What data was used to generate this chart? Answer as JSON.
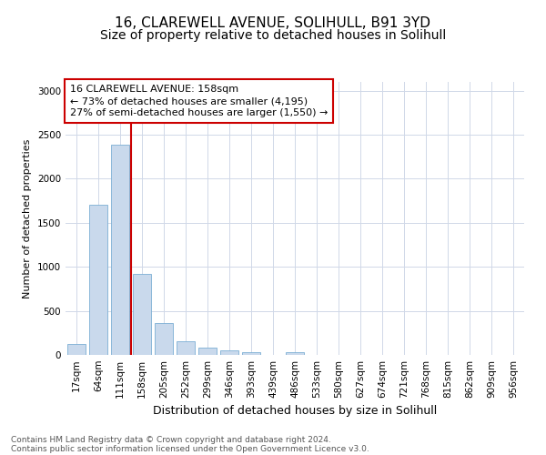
{
  "title1": "16, CLAREWELL AVENUE, SOLIHULL, B91 3YD",
  "title2": "Size of property relative to detached houses in Solihull",
  "xlabel": "Distribution of detached houses by size in Solihull",
  "ylabel": "Number of detached properties",
  "categories": [
    "17sqm",
    "64sqm",
    "111sqm",
    "158sqm",
    "205sqm",
    "252sqm",
    "299sqm",
    "346sqm",
    "393sqm",
    "439sqm",
    "486sqm",
    "533sqm",
    "580sqm",
    "627sqm",
    "674sqm",
    "721sqm",
    "768sqm",
    "815sqm",
    "862sqm",
    "909sqm",
    "956sqm"
  ],
  "values": [
    120,
    1700,
    2390,
    920,
    360,
    155,
    80,
    55,
    30,
    5,
    30,
    5,
    5,
    0,
    0,
    0,
    0,
    0,
    0,
    0,
    0
  ],
  "bar_color": "#c9d9ec",
  "bar_edge_color": "#7bafd4",
  "vline_color": "#cc0000",
  "annotation_line1": "16 CLAREWELL AVENUE: 158sqm",
  "annotation_line2": "← 73% of detached houses are smaller (4,195)",
  "annotation_line3": "27% of semi-detached houses are larger (1,550) →",
  "annotation_box_color": "#cc0000",
  "ylim": [
    0,
    3100
  ],
  "yticks": [
    0,
    500,
    1000,
    1500,
    2000,
    2500,
    3000
  ],
  "footer1": "Contains HM Land Registry data © Crown copyright and database right 2024.",
  "footer2": "Contains public sector information licensed under the Open Government Licence v3.0.",
  "bg_color": "#ffffff",
  "grid_color": "#d0d8e8",
  "title1_fontsize": 11,
  "title2_fontsize": 10,
  "xlabel_fontsize": 9,
  "ylabel_fontsize": 8,
  "tick_fontsize": 7.5,
  "annotation_fontsize": 8,
  "footer_fontsize": 6.5
}
